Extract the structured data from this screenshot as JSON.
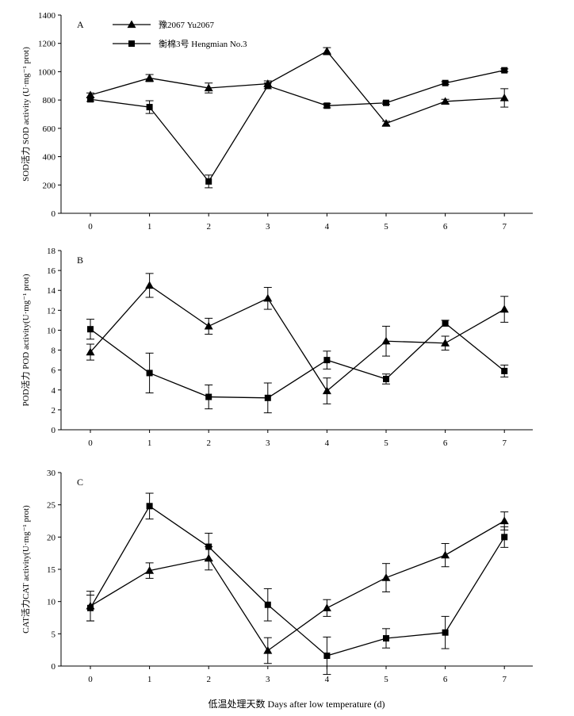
{
  "chart_data": [
    {
      "type": "line",
      "panel_label": "A",
      "ylabel": "SOD活力 SOD activity (U·mg⁻¹ prot)",
      "ylim": [
        0,
        1400
      ],
      "yticks": [
        0,
        200,
        400,
        600,
        800,
        1000,
        1200,
        1400
      ],
      "x": [
        0,
        1,
        2,
        3,
        4,
        5,
        6,
        7
      ],
      "xticks": [
        "0",
        "1",
        "2",
        "3",
        "4",
        "5",
        "6",
        "7"
      ],
      "legend_position": "top-left",
      "series": [
        {
          "name": "豫2067 Yu2067",
          "marker": "triangle",
          "values": [
            835,
            955,
            885,
            915,
            1145,
            635,
            790,
            815
          ],
          "errors": [
            15,
            25,
            35,
            20,
            25,
            15,
            15,
            65
          ]
        },
        {
          "name": "衡棉3号 Hengmian No.3",
          "marker": "square",
          "values": [
            805,
            750,
            225,
            900,
            760,
            780,
            920,
            1010
          ],
          "errors": [
            15,
            45,
            45,
            20,
            15,
            10,
            10,
            10
          ]
        }
      ]
    },
    {
      "type": "line",
      "panel_label": "B",
      "ylabel": "POD活力 POD activity(U·mg⁻¹ prot)",
      "ylim": [
        0,
        18
      ],
      "yticks": [
        0,
        2,
        4,
        6,
        8,
        10,
        12,
        14,
        16,
        18
      ],
      "x": [
        0,
        1,
        2,
        3,
        4,
        5,
        6,
        7
      ],
      "xticks": [
        "0",
        "1",
        "2",
        "3",
        "4",
        "5",
        "6",
        "7"
      ],
      "series": [
        {
          "name": "豫2067 Yu2067",
          "marker": "triangle",
          "values": [
            7.8,
            14.5,
            10.4,
            13.2,
            3.9,
            8.9,
            8.7,
            12.1
          ],
          "errors": [
            0.8,
            1.2,
            0.8,
            1.1,
            1.3,
            1.5,
            0.7,
            1.3
          ]
        },
        {
          "name": "衡棉3号 Hengmian No.3",
          "marker": "square",
          "values": [
            10.1,
            5.7,
            3.3,
            3.2,
            7.0,
            5.1,
            10.7,
            5.9
          ],
          "errors": [
            1.0,
            2.0,
            1.2,
            1.5,
            0.9,
            0.5,
            0.3,
            0.6
          ]
        }
      ]
    },
    {
      "type": "line",
      "panel_label": "C",
      "ylabel": "CAT活力CAT activity(U·mg⁻¹ prot)",
      "ylim": [
        0,
        30
      ],
      "yticks": [
        0,
        5,
        10,
        15,
        20,
        25,
        30
      ],
      "x": [
        0,
        1,
        2,
        3,
        4,
        5,
        6,
        7
      ],
      "xticks": [
        "0",
        "1",
        "2",
        "3",
        "4",
        "5",
        "6",
        "7"
      ],
      "xlabel": "低温处理天数 Days after low temperature (d)",
      "series": [
        {
          "name": "豫2067 Yu2067",
          "marker": "triangle",
          "values": [
            9.3,
            14.8,
            16.7,
            2.4,
            9.0,
            13.7,
            17.2,
            22.5
          ],
          "errors": [
            2.3,
            1.2,
            1.8,
            2.0,
            1.3,
            2.2,
            1.8,
            1.4
          ]
        },
        {
          "name": "衡棉3号 Hengmian No.3",
          "marker": "square",
          "values": [
            9.0,
            24.8,
            18.5,
            9.5,
            1.6,
            4.3,
            5.2,
            20.0
          ],
          "errors": [
            2.0,
            2.0,
            2.1,
            2.5,
            2.9,
            1.5,
            2.5,
            1.6
          ]
        }
      ]
    }
  ]
}
